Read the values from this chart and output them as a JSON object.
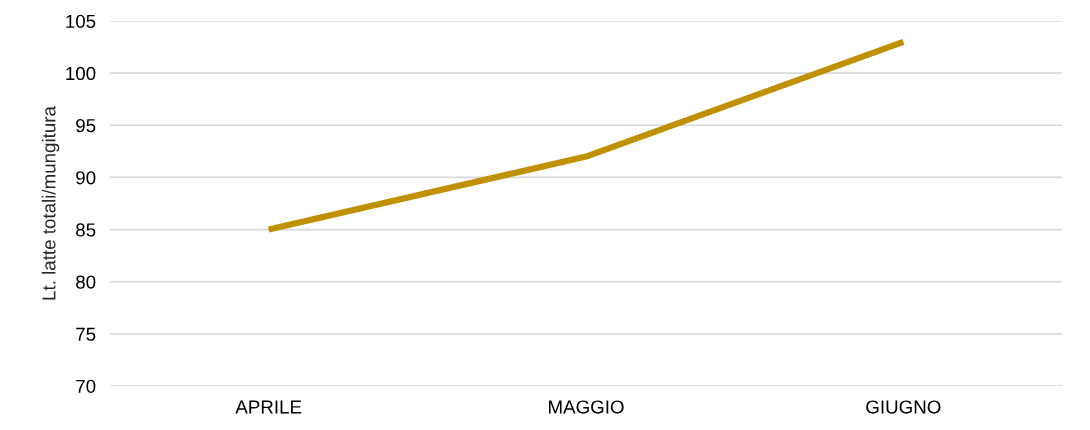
{
  "chart_data": {
    "type": "line",
    "ylabel": "Lt. latte totali/mungitura",
    "categories": [
      "APRILE",
      "MAGGIO",
      "GIUGNO"
    ],
    "series": [
      {
        "color": "#bf9000",
        "values": [
          85,
          92,
          103
        ]
      }
    ],
    "ylim": [
      70,
      105
    ],
    "yticks": [
      70,
      75,
      80,
      85,
      90,
      95,
      100,
      105
    ],
    "grid": "y",
    "legend": false,
    "marker": "none",
    "line_style": "solid"
  }
}
